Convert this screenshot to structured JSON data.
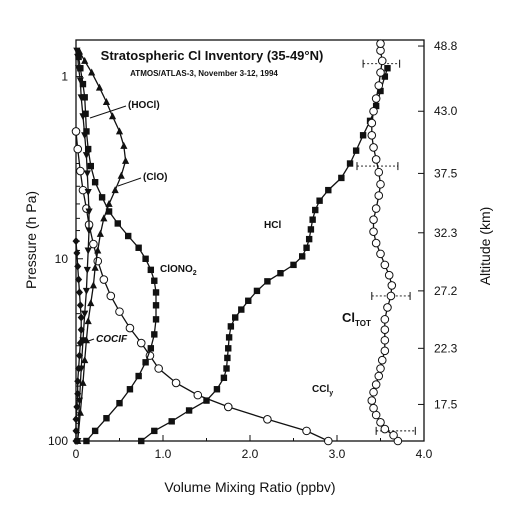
{
  "chart_data": {
    "type": "line",
    "title": "Stratospheric Cl Inventory (35-49°N)",
    "subtitle": "ATMOS/ATLAS-3, November 3-12, 1994",
    "xlabel": "Volume Mixing Ratio (ppbv)",
    "ylabel": "Pressure (h Pa)",
    "y2label": "Altitude (km)",
    "xlim": [
      0,
      4.0
    ],
    "ylim": [
      100,
      0.63
    ],
    "yscale": "log",
    "grid": false,
    "x_ticks": [
      "0",
      "1.0",
      "2.0",
      "3.0",
      "4.0"
    ],
    "y_ticks": [
      {
        "value": 1,
        "label": "1"
      },
      {
        "value": 10,
        "label": "10"
      },
      {
        "value": 100,
        "label": "100"
      }
    ],
    "y2_ticks": [
      "48.8",
      "43.0",
      "37.5",
      "32.3",
      "27.2",
      "22.3",
      "17.5"
    ],
    "y2_tick_pressures": [
      0.68,
      1.55,
      3.4,
      7.2,
      15.0,
      31.0,
      63.0
    ],
    "series": [
      {
        "name": "HCl",
        "marker": "square",
        "points": [
          [
            0.75,
            100
          ],
          [
            0.9,
            88
          ],
          [
            1.1,
            78
          ],
          [
            1.3,
            68
          ],
          [
            1.5,
            60
          ],
          [
            1.62,
            52
          ],
          [
            1.7,
            45
          ],
          [
            1.73,
            40
          ],
          [
            1.74,
            35
          ],
          [
            1.75,
            31
          ],
          [
            1.76,
            27
          ],
          [
            1.78,
            23.5
          ],
          [
            1.83,
            21
          ],
          [
            1.9,
            19
          ],
          [
            1.98,
            17
          ],
          [
            2.08,
            15
          ],
          [
            2.2,
            13.3
          ],
          [
            2.35,
            12
          ],
          [
            2.5,
            10.8
          ],
          [
            2.6,
            9.7
          ],
          [
            2.65,
            8.7
          ],
          [
            2.68,
            7.8
          ],
          [
            2.7,
            6.9
          ],
          [
            2.72,
            6.1
          ],
          [
            2.75,
            5.4
          ],
          [
            2.8,
            4.8
          ],
          [
            2.9,
            4.2
          ],
          [
            3.05,
            3.6
          ],
          [
            3.15,
            3.0
          ],
          [
            3.22,
            2.55
          ],
          [
            3.3,
            2.1
          ],
          [
            3.38,
            1.75
          ],
          [
            3.45,
            1.45
          ],
          [
            3.5,
            1.2
          ],
          [
            3.55,
            1.0
          ],
          [
            3.58,
            0.9
          ]
        ]
      },
      {
        "name": "CClᵧ",
        "marker": "circle",
        "points": [
          [
            2.9,
            100
          ],
          [
            2.65,
            88
          ],
          [
            2.2,
            76
          ],
          [
            1.75,
            65
          ],
          [
            1.4,
            56
          ],
          [
            1.15,
            48
          ],
          [
            0.95,
            40
          ],
          [
            0.85,
            34
          ],
          [
            0.75,
            29
          ],
          [
            0.62,
            24
          ],
          [
            0.5,
            19.5
          ],
          [
            0.4,
            16
          ],
          [
            0.32,
            13
          ],
          [
            0.25,
            10.3
          ],
          [
            0.2,
            8.3
          ],
          [
            0.15,
            6.5
          ],
          [
            0.12,
            5.3
          ],
          [
            0.08,
            4.2
          ],
          [
            0.05,
            3.3
          ],
          [
            0.02,
            2.5
          ],
          [
            0.0,
            2.0
          ]
        ]
      },
      {
        "name": "ClONO₂",
        "marker": "square",
        "points": [
          [
            0.12,
            100
          ],
          [
            0.22,
            88
          ],
          [
            0.35,
            75
          ],
          [
            0.5,
            62
          ],
          [
            0.62,
            52
          ],
          [
            0.72,
            44
          ],
          [
            0.8,
            37
          ],
          [
            0.86,
            31
          ],
          [
            0.9,
            26
          ],
          [
            0.92,
            21.5
          ],
          [
            0.92,
            18
          ],
          [
            0.92,
            15.3
          ],
          [
            0.9,
            13.2
          ],
          [
            0.86,
            11.5
          ],
          [
            0.8,
            10
          ],
          [
            0.72,
            8.7
          ],
          [
            0.6,
            7.5
          ],
          [
            0.48,
            6.4
          ],
          [
            0.38,
            5.5
          ],
          [
            0.3,
            4.6
          ],
          [
            0.22,
            3.8
          ],
          [
            0.17,
            3.1
          ],
          [
            0.14,
            2.5
          ],
          [
            0.12,
            2.0
          ],
          [
            0.11,
            1.6
          ],
          [
            0.1,
            1.3
          ],
          [
            0.08,
            1.1
          ],
          [
            0.05,
            0.9
          ],
          [
            0.03,
            0.78
          ]
        ]
      },
      {
        "name": "ClO",
        "marker": "triangle-up",
        "points": [
          [
            0.02,
            100
          ],
          [
            0.05,
            70
          ],
          [
            0.08,
            48
          ],
          [
            0.1,
            36
          ],
          [
            0.12,
            28
          ],
          [
            0.14,
            22
          ],
          [
            0.17,
            17.5
          ],
          [
            0.2,
            14
          ],
          [
            0.22,
            11.2
          ],
          [
            0.25,
            9
          ],
          [
            0.28,
            7.3
          ],
          [
            0.32,
            6
          ],
          [
            0.38,
            5
          ],
          [
            0.45,
            4.2
          ],
          [
            0.52,
            3.5
          ],
          [
            0.57,
            2.9
          ],
          [
            0.55,
            2.4
          ],
          [
            0.5,
            2.0
          ],
          [
            0.42,
            1.65
          ],
          [
            0.35,
            1.38
          ],
          [
            0.27,
            1.15
          ],
          [
            0.18,
            0.95
          ],
          [
            0.1,
            0.82
          ],
          [
            0.04,
            0.73
          ]
        ]
      },
      {
        "name": "HOCl",
        "marker": "triangle-down",
        "points": [
          [
            0.02,
            100
          ],
          [
            0.04,
            60
          ],
          [
            0.06,
            40
          ],
          [
            0.08,
            28
          ],
          [
            0.1,
            20
          ],
          [
            0.12,
            15
          ],
          [
            0.13,
            11.5
          ],
          [
            0.14,
            9
          ],
          [
            0.15,
            7
          ],
          [
            0.15,
            5.5
          ],
          [
            0.14,
            4.3
          ],
          [
            0.13,
            3.4
          ],
          [
            0.12,
            2.7
          ],
          [
            0.1,
            2.1
          ],
          [
            0.08,
            1.65
          ],
          [
            0.06,
            1.3
          ],
          [
            0.05,
            1.05
          ],
          [
            0.03,
            0.9
          ],
          [
            0.02,
            0.78
          ],
          [
            0.01,
            0.72
          ]
        ]
      },
      {
        "name": "COClF",
        "marker": "diamond",
        "points": [
          [
            0.0,
            100
          ],
          [
            0.0,
            88
          ],
          [
            0.0,
            76
          ],
          [
            0.01,
            65
          ],
          [
            0.02,
            55
          ],
          [
            0.02,
            47
          ],
          [
            0.03,
            40
          ],
          [
            0.04,
            34
          ],
          [
            0.05,
            29
          ],
          [
            0.06,
            24.5
          ],
          [
            0.06,
            21
          ],
          [
            0.05,
            18
          ],
          [
            0.04,
            15.3
          ],
          [
            0.03,
            13
          ],
          [
            0.02,
            11
          ],
          [
            0.01,
            9.3
          ],
          [
            0.0,
            8
          ]
        ]
      },
      {
        "name": "Cl_TOT",
        "marker": "circle",
        "points": [
          [
            3.7,
            100
          ],
          [
            3.65,
            93
          ],
          [
            3.55,
            86
          ],
          [
            3.5,
            79
          ],
          [
            3.45,
            72
          ],
          [
            3.42,
            66
          ],
          [
            3.4,
            60
          ],
          [
            3.42,
            54
          ],
          [
            3.45,
            49
          ],
          [
            3.48,
            44
          ],
          [
            3.5,
            40
          ],
          [
            3.52,
            36
          ],
          [
            3.55,
            32
          ],
          [
            3.55,
            28
          ],
          [
            3.55,
            24.5
          ],
          [
            3.55,
            21.5
          ],
          [
            3.58,
            18.5
          ],
          [
            3.62,
            16
          ],
          [
            3.63,
            14
          ],
          [
            3.6,
            12.3
          ],
          [
            3.55,
            10.8
          ],
          [
            3.5,
            9.4
          ],
          [
            3.45,
            8.2
          ],
          [
            3.42,
            7.1
          ],
          [
            3.42,
            6.1
          ],
          [
            3.45,
            5.3
          ],
          [
            3.48,
            4.5
          ],
          [
            3.5,
            3.9
          ],
          [
            3.48,
            3.35
          ],
          [
            3.45,
            2.85
          ],
          [
            3.42,
            2.45
          ],
          [
            3.4,
            2.1
          ],
          [
            3.4,
            1.8
          ],
          [
            3.42,
            1.55
          ],
          [
            3.45,
            1.32
          ],
          [
            3.48,
            1.12
          ],
          [
            3.5,
            0.95
          ],
          [
            3.52,
            0.82
          ],
          [
            3.5,
            0.72
          ],
          [
            3.5,
            0.66
          ]
        ],
        "error_bars": [
          {
            "y": 88,
            "x": 3.7,
            "minus": 0.25,
            "plus": 0.2
          },
          {
            "y": 16,
            "x": 3.62,
            "minus": 0.22,
            "plus": 0.22
          },
          {
            "y": 3.1,
            "x": 3.45,
            "minus": 0.22,
            "plus": 0.25
          },
          {
            "y": 0.85,
            "x": 3.52,
            "minus": 0.22,
            "plus": 0.2
          }
        ]
      }
    ],
    "labels": {
      "hocl": "(HOCl)",
      "clo": "(ClO)",
      "hcl": "HCl",
      "clono2_main": "ClONO",
      "clono2_sub": "2",
      "cocif": "COCIF",
      "ccly_main": "CCl",
      "ccly_sub": "y",
      "cltot_main": "Cl",
      "cltot_sub": "TOT"
    }
  }
}
